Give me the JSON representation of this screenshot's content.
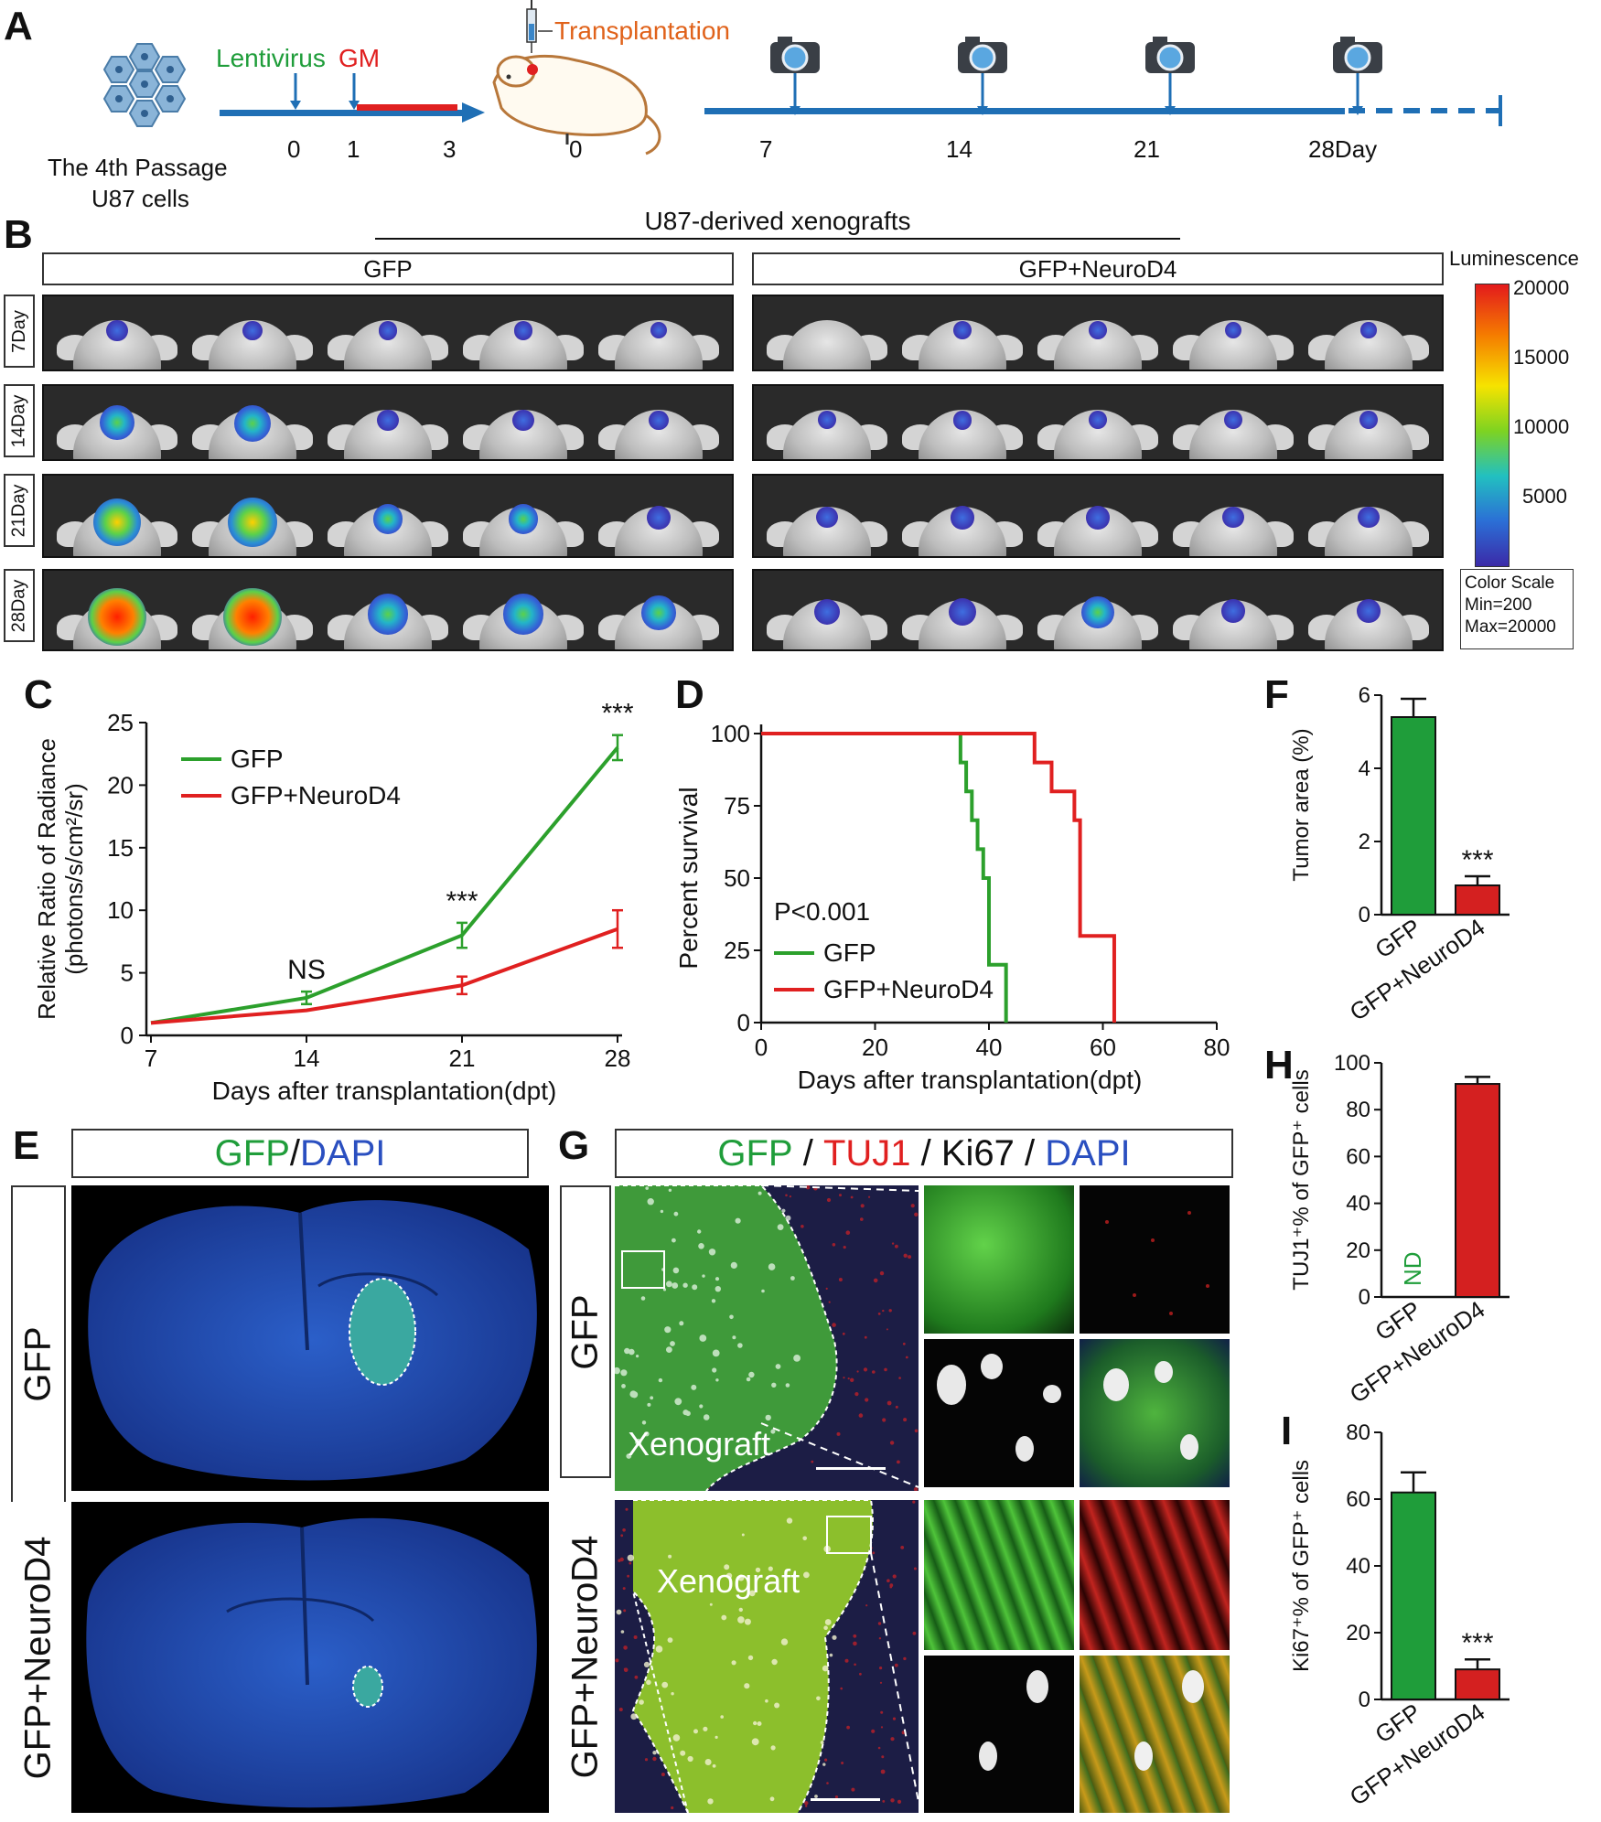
{
  "panels": {
    "A": "A",
    "B": "B",
    "C": "C",
    "D": "D",
    "E": "E",
    "F": "F",
    "G": "G",
    "H": "H",
    "I": "I"
  },
  "panel_a": {
    "cells_label_line1": "The 4th Passage",
    "cells_label_line2": "U87 cells",
    "lentivirus": "Lentivirus",
    "gm": "GM",
    "transplantation": "Transplantation",
    "ticks_pre": [
      "0",
      "1",
      "3"
    ],
    "tick_transplant": "0",
    "ticks_post": [
      "7",
      "14",
      "21",
      "28Day"
    ],
    "colors": {
      "lentivirus": "#1f9d3a",
      "gm": "#e02020",
      "transplantation": "#e0621a",
      "timeline": "#1f6fb5"
    }
  },
  "panel_b": {
    "title": "U87-derived xenografts",
    "group_left": "GFP",
    "group_right": "GFP+NeuroD4",
    "rows": [
      "7Day",
      "14Day",
      "21Day",
      "28Day"
    ],
    "colorbar": {
      "title": "Luminescence",
      "ticks": [
        "20000",
        "15000",
        "10000",
        "5000"
      ],
      "scale_label": "Color Scale",
      "min_label": "Min=200",
      "max_label": "Max=20000"
    }
  },
  "chart_data": [
    {
      "id": "C",
      "type": "line",
      "x": [
        7,
        14,
        21,
        28
      ],
      "xlabel": "Days after transplantation(dpt)",
      "ylabel_line1": "Relative Ratio of Radiance",
      "ylabel_line2": "(photons/s/cm²/sr)",
      "ylim": [
        0,
        25
      ],
      "yticks": [
        "0",
        "5",
        "10",
        "15",
        "20",
        "25"
      ],
      "xticks": [
        "7",
        "14",
        "21",
        "28"
      ],
      "series": [
        {
          "name": "GFP",
          "color": "#2ca02c",
          "values": [
            1,
            3,
            8,
            23
          ],
          "err": [
            0,
            0.5,
            1,
            1
          ]
        },
        {
          "name": "GFP+NeuroD4",
          "color": "#e02020",
          "values": [
            1,
            2,
            4,
            8.5
          ],
          "err": [
            0,
            0,
            0.7,
            1.5
          ]
        }
      ],
      "annotations": [
        {
          "x": 14,
          "text": "NS"
        },
        {
          "x": 21,
          "text": "***"
        },
        {
          "x": 28,
          "text": "***"
        }
      ],
      "legend": "top-left"
    },
    {
      "id": "D",
      "type": "line",
      "subtype": "kaplan-meier",
      "xlabel": "Days after transplantation(dpt)",
      "ylabel": "Percent survival",
      "xlim": [
        0,
        80
      ],
      "ylim": [
        0,
        100
      ],
      "xticks": [
        "0",
        "20",
        "40",
        "60",
        "80"
      ],
      "yticks": [
        "0",
        "25",
        "50",
        "75",
        "100"
      ],
      "pvalue": "P<0.001",
      "series": [
        {
          "name": "GFP",
          "color": "#2ca02c",
          "steps": [
            [
              0,
              100
            ],
            [
              35,
              100
            ],
            [
              35,
              90
            ],
            [
              36,
              90
            ],
            [
              36,
              80
            ],
            [
              37,
              80
            ],
            [
              37,
              70
            ],
            [
              38,
              70
            ],
            [
              38,
              60
            ],
            [
              39,
              60
            ],
            [
              39,
              50
            ],
            [
              40,
              50
            ],
            [
              40,
              40
            ],
            [
              40,
              30
            ],
            [
              40,
              20
            ],
            [
              43,
              20
            ],
            [
              43,
              0
            ]
          ]
        },
        {
          "name": "GFP+NeuroD4",
          "color": "#e02020",
          "steps": [
            [
              0,
              100
            ],
            [
              48,
              100
            ],
            [
              48,
              90
            ],
            [
              51,
              90
            ],
            [
              51,
              80
            ],
            [
              55,
              80
            ],
            [
              55,
              70
            ],
            [
              56,
              70
            ],
            [
              56,
              30
            ],
            [
              62,
              30
            ],
            [
              62,
              0
            ]
          ]
        }
      ],
      "legend": "bottom-left"
    },
    {
      "id": "F",
      "type": "bar",
      "categories": [
        "GFP",
        "GFP+NeuroD4"
      ],
      "values": [
        5.4,
        0.8
      ],
      "err": [
        0.5,
        0.25
      ],
      "colors": [
        "#1f9d3a",
        "#d42020"
      ],
      "ylabel": "Tumor area (%)",
      "ylim": [
        0,
        6
      ],
      "yticks": [
        "0",
        "2",
        "4",
        "6"
      ],
      "annotations": [
        {
          "category": "GFP+NeuroD4",
          "text": "***"
        }
      ]
    },
    {
      "id": "H",
      "type": "bar",
      "categories": [
        "GFP",
        "GFP+NeuroD4"
      ],
      "values": [
        0,
        91
      ],
      "err": [
        0,
        3
      ],
      "colors": [
        "#1f9d3a",
        "#d42020"
      ],
      "ylabel": "TUJ1⁺% of GFP⁺ cells",
      "ylim": [
        0,
        100
      ],
      "yticks": [
        "0",
        "20",
        "40",
        "60",
        "80",
        "100"
      ],
      "annotations": [
        {
          "category": "GFP",
          "text": "ND"
        }
      ]
    },
    {
      "id": "I",
      "type": "bar",
      "categories": [
        "GFP",
        "GFP+NeuroD4"
      ],
      "values": [
        62,
        9
      ],
      "err": [
        6,
        3
      ],
      "colors": [
        "#1f9d3a",
        "#d42020"
      ],
      "ylabel": "Ki67⁺% of GFP⁺ cells",
      "ylim": [
        0,
        80
      ],
      "yticks": [
        "0",
        "20",
        "40",
        "60",
        "80"
      ],
      "annotations": [
        {
          "category": "GFP+NeuroD4",
          "text": "***"
        }
      ]
    }
  ],
  "panel_e": {
    "header_green": "GFP",
    "header_slash": "/",
    "header_blue": "DAPI",
    "row_top": "GFP",
    "row_bottom": "GFP+NeuroD4"
  },
  "panel_g": {
    "h_gfp": "GFP",
    "h_s1": " / ",
    "h_tuj1": "TUJ1",
    "h_s2": " / ",
    "h_ki67": "Ki67",
    "h_s3": " / ",
    "h_dapi": "DAPI",
    "row_top": "GFP",
    "row_bottom": "GFP+NeuroD4",
    "xenograft_top": "Xenograft",
    "xenograft_bottom": "Xenograft"
  }
}
